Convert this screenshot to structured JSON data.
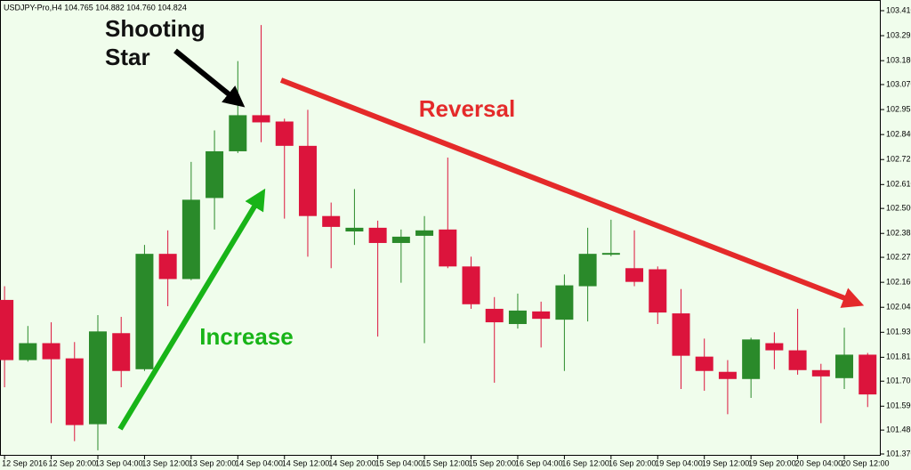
{
  "chart_data": {
    "type": "candlestick",
    "title": "USDJPY-Pro,H4  104.765 104.882 104.760 104.824",
    "annotations": {
      "shooting_star": [
        "Shooting",
        "Star"
      ],
      "reversal": "Reversal",
      "increase": "Increase"
    },
    "categories": [
      "12 Sep 2016",
      null,
      "12 Sep 20:00",
      null,
      "13 Sep 04:00",
      null,
      "13 Sep 12:00",
      null,
      "13 Sep 20:00",
      null,
      "14 Sep 04:00",
      null,
      "14 Sep 12:00",
      null,
      "14 Sep 20:00",
      null,
      "15 Sep 04:00",
      null,
      "15 Sep 12:00",
      null,
      "15 Sep 20:00",
      null,
      "16 Sep 04:00",
      null,
      "16 Sep 12:00",
      null,
      "16 Sep 20:00",
      null,
      "19 Sep 04:00",
      null,
      "19 Sep 12:00",
      null,
      "19 Sep 20:00",
      null,
      "20 Sep 04:00",
      null,
      "20 Sep 12:00",
      null
    ],
    "open": [
      102.079,
      101.802,
      101.88,
      101.81,
      101.507,
      101.926,
      101.76,
      102.291,
      102.175,
      102.548,
      102.763,
      102.929,
      102.9,
      102.788,
      102.465,
      102.394,
      102.411,
      102.341,
      102.374,
      102.403,
      102.233,
      102.038,
      101.968,
      102.026,
      101.988,
      102.142,
      102.287,
      102.225,
      102.22,
      102.017,
      101.818,
      101.748,
      101.715,
      101.88,
      101.847,
      101.756,
      101.719,
      101.827
    ],
    "high": [
      102.142,
      101.959,
      101.976,
      101.885,
      102.009,
      102.001,
      102.332,
      102.399,
      102.714,
      102.859,
      103.178,
      103.344,
      102.913,
      102.954,
      102.527,
      102.589,
      102.444,
      102.403,
      102.465,
      102.734,
      102.278,
      102.092,
      102.108,
      102.071,
      102.196,
      102.411,
      102.448,
      102.399,
      102.233,
      102.129,
      101.901,
      101.802,
      101.905,
      101.93,
      102.038,
      101.785,
      101.951,
      101.835
    ],
    "low": [
      101.677,
      101.795,
      101.512,
      101.429,
      101.387,
      101.677,
      101.752,
      102.05,
      102.17,
      102.403,
      102.755,
      102.805,
      102.453,
      102.278,
      102.225,
      102.332,
      101.91,
      102.158,
      101.88,
      102.225,
      102.038,
      101.698,
      101.947,
      101.86,
      101.752,
      101.98,
      102.28,
      102.142,
      101.968,
      101.669,
      101.661,
      101.553,
      101.628,
      101.76,
      101.735,
      101.512,
      101.669,
      101.586
    ],
    "close": [
      101.802,
      101.88,
      101.806,
      101.503,
      101.934,
      101.752,
      102.291,
      102.175,
      102.54,
      102.763,
      102.929,
      102.896,
      102.788,
      102.465,
      102.415,
      102.411,
      102.341,
      102.37,
      102.399,
      102.233,
      102.059,
      101.976,
      102.03,
      101.992,
      102.146,
      102.291,
      102.295,
      102.162,
      102.021,
      101.822,
      101.752,
      101.715,
      101.897,
      101.847,
      101.756,
      101.727,
      101.827,
      101.644
    ],
    "up_color": "#2a8a2a",
    "down_color": "#dc143c",
    "ylim": [
      101.37,
      103.41
    ],
    "yticks": [
      {
        "value": 103.41,
        "label": "103.410"
      },
      {
        "value": 103.295,
        "label": "103.295"
      },
      {
        "value": 103.18,
        "label": "103.180"
      },
      {
        "value": 103.07,
        "label": "103.070"
      },
      {
        "value": 102.955,
        "label": "102.955"
      },
      {
        "value": 102.84,
        "label": "102.840"
      },
      {
        "value": 102.725,
        "label": "102.725"
      },
      {
        "value": 102.61,
        "label": "102.610"
      },
      {
        "value": 102.5,
        "label": "102.500"
      },
      {
        "value": 102.385,
        "label": "102.385"
      },
      {
        "value": 102.275,
        "label": "102.275"
      },
      {
        "value": 102.16,
        "label": "102.160"
      },
      {
        "value": 102.045,
        "label": "102.045"
      },
      {
        "value": 101.93,
        "label": "101.930"
      },
      {
        "value": 101.815,
        "label": "101.815"
      },
      {
        "value": 101.705,
        "label": "101.705"
      },
      {
        "value": 101.59,
        "label": "101.590"
      },
      {
        "value": 101.48,
        "label": "101.480"
      },
      {
        "value": 101.37,
        "label": "101.370"
      }
    ]
  }
}
